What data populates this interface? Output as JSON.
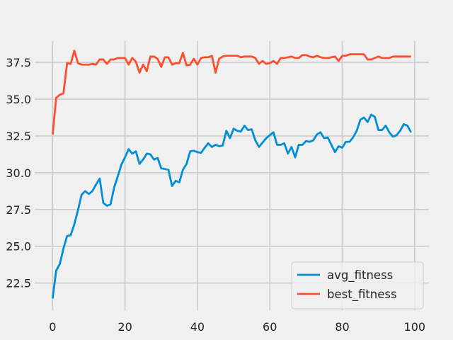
{
  "chart_data": {
    "type": "line",
    "title": "",
    "xlabel": "",
    "ylabel": "",
    "xlim": [
      -4.95,
      103.95
    ],
    "ylim": [
      20.65,
      38.95
    ],
    "xticks": [
      0,
      20,
      40,
      60,
      80,
      100
    ],
    "yticks": [
      22.5,
      25.0,
      27.5,
      30.0,
      32.5,
      35.0,
      37.5
    ],
    "ytick_labels": [
      "22.5",
      "25.0",
      "27.5",
      "30.0",
      "32.5",
      "35.0",
      "37.5"
    ],
    "grid": true,
    "legend": "lower-right",
    "colors": {
      "background": "#f0f0f0",
      "grid": "#cbcbcb"
    },
    "series": [
      {
        "name": "avg_fitness",
        "color": "#008fd5",
        "values": [
          21.45,
          23.35,
          23.8,
          24.85,
          25.7,
          25.75,
          26.5,
          27.45,
          28.5,
          28.75,
          28.55,
          28.75,
          29.2,
          29.6,
          27.95,
          27.75,
          27.85,
          29.0,
          29.75,
          30.55,
          31.05,
          31.6,
          31.3,
          31.45,
          30.6,
          30.9,
          31.3,
          31.25,
          30.9,
          31.0,
          30.3,
          30.25,
          30.2,
          29.1,
          29.45,
          29.35,
          30.2,
          30.6,
          31.45,
          31.5,
          31.4,
          31.35,
          31.7,
          32.0,
          31.75,
          31.9,
          31.8,
          31.85,
          32.85,
          32.35,
          33.0,
          32.85,
          32.8,
          33.2,
          32.9,
          32.95,
          32.2,
          31.75,
          32.05,
          32.35,
          32.55,
          32.75,
          31.9,
          31.9,
          32.0,
          31.3,
          31.75,
          31.05,
          31.9,
          31.9,
          32.15,
          32.1,
          32.2,
          32.6,
          32.75,
          32.35,
          32.4,
          31.9,
          31.4,
          31.8,
          31.7,
          32.1,
          32.1,
          32.4,
          32.85,
          33.6,
          33.75,
          33.45,
          33.95,
          33.8,
          32.9,
          32.9,
          33.2,
          32.75,
          32.45,
          32.55,
          32.85,
          33.3,
          33.2,
          32.75
        ]
      },
      {
        "name": "best_fitness",
        "color": "#fc4f30",
        "values": [
          32.6,
          35.1,
          35.3,
          35.4,
          37.45,
          37.4,
          38.3,
          37.45,
          37.35,
          37.35,
          37.35,
          37.4,
          37.35,
          37.7,
          37.7,
          37.4,
          37.7,
          37.7,
          37.8,
          37.8,
          37.8,
          37.35,
          37.8,
          37.55,
          36.8,
          37.35,
          36.9,
          37.9,
          37.9,
          37.75,
          37.2,
          37.85,
          37.85,
          37.35,
          37.45,
          37.45,
          38.15,
          37.3,
          37.35,
          37.75,
          37.35,
          37.8,
          37.85,
          37.85,
          37.95,
          36.8,
          37.75,
          37.9,
          37.95,
          37.95,
          37.95,
          37.95,
          37.85,
          37.9,
          37.9,
          37.9,
          37.8,
          37.4,
          37.6,
          37.4,
          37.45,
          37.6,
          37.4,
          37.8,
          37.8,
          37.85,
          37.9,
          37.8,
          37.8,
          38.0,
          38.0,
          37.9,
          37.85,
          37.95,
          37.85,
          37.8,
          37.8,
          37.85,
          37.9,
          37.6,
          37.95,
          37.95,
          38.05,
          38.05,
          38.05,
          38.05,
          38.05,
          37.7,
          37.7,
          37.8,
          37.9,
          37.8,
          37.8,
          37.8,
          37.9,
          37.9,
          37.9,
          37.9,
          37.9,
          37.9
        ]
      }
    ]
  }
}
